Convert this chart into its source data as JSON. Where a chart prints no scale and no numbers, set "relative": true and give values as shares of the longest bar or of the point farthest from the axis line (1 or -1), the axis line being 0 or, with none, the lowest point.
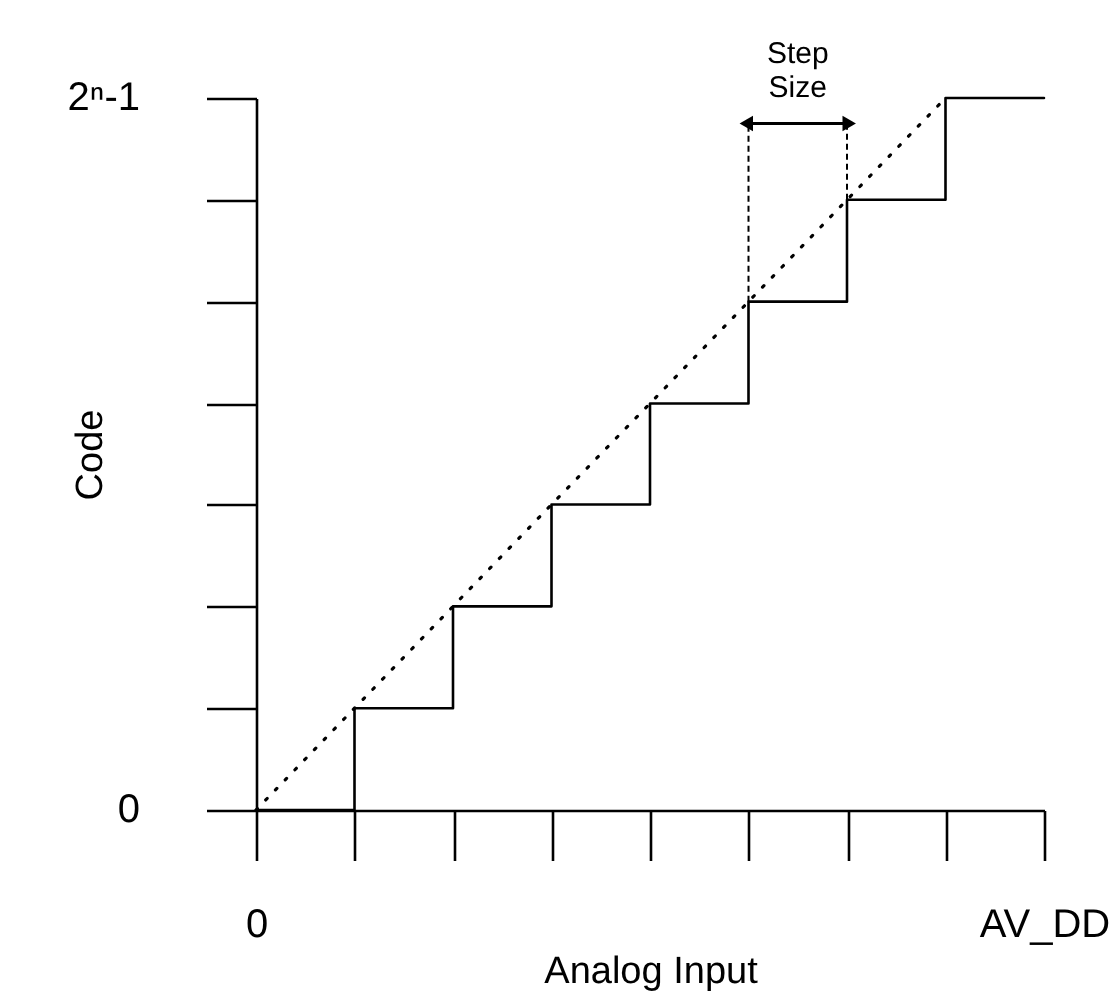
{
  "chart_data": {
    "type": "step",
    "xlabel": "Analog Input",
    "ylabel": "Code",
    "relative": true,
    "categories": [
      "0",
      null,
      null,
      null,
      null,
      null,
      null,
      null,
      "AV_DD"
    ],
    "series": [
      {
        "color": "#000000",
        "line_style": "solid",
        "values": [
          0,
          0.143,
          0.286,
          0.429,
          0.571,
          0.714,
          0.857,
          1,
          1
        ]
      },
      {
        "type": "line",
        "color": "#000000",
        "line_style": "dotted",
        "values": [
          0,
          0.143,
          0.286,
          0.429,
          0.571,
          0.714,
          0.857,
          1,
          null
        ]
      }
    ],
    "annotations": [
      "0",
      "2ⁿ-1",
      "Step Size"
    ],
    "grid": false
  }
}
